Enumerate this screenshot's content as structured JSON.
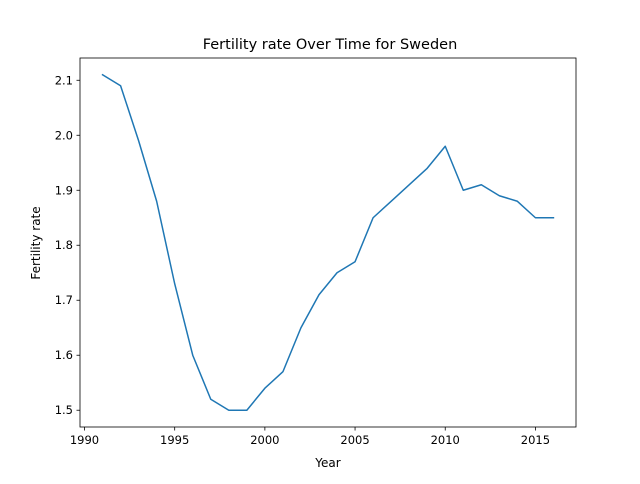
{
  "chart_data": {
    "type": "line",
    "title": "Fertility rate Over Time for Sweden",
    "xlabel": "Year",
    "ylabel": "Fertility rate",
    "xlim": [
      1989.75,
      2017.25
    ],
    "ylim": [
      1.4695,
      2.1405
    ],
    "xticks": [
      1990,
      1995,
      2000,
      2005,
      2010,
      2015
    ],
    "yticks": [
      1.5,
      1.6,
      1.7,
      1.8,
      1.9,
      2.0,
      2.1
    ],
    "ytick_labels": [
      "1.5",
      "1.6",
      "1.7",
      "1.8",
      "1.9",
      "2.0",
      "2.1"
    ],
    "grid": false,
    "line_color": "#1f77b4",
    "series": [
      {
        "x": [
          1991,
          1992,
          1993,
          1994,
          1995,
          1996,
          1997,
          1998,
          1999,
          2000,
          2001,
          2002,
          2003,
          2004,
          2005,
          2006,
          2007,
          2008,
          2009,
          2010,
          2011,
          2012,
          2013,
          2014,
          2015,
          2016
        ],
        "values": [
          2.11,
          2.09,
          1.99,
          1.88,
          1.73,
          1.6,
          1.52,
          1.5,
          1.5,
          1.54,
          1.57,
          1.65,
          1.71,
          1.75,
          1.77,
          1.85,
          1.88,
          1.91,
          1.94,
          1.98,
          1.9,
          1.91,
          1.89,
          1.88,
          1.85,
          1.85
        ]
      }
    ]
  }
}
